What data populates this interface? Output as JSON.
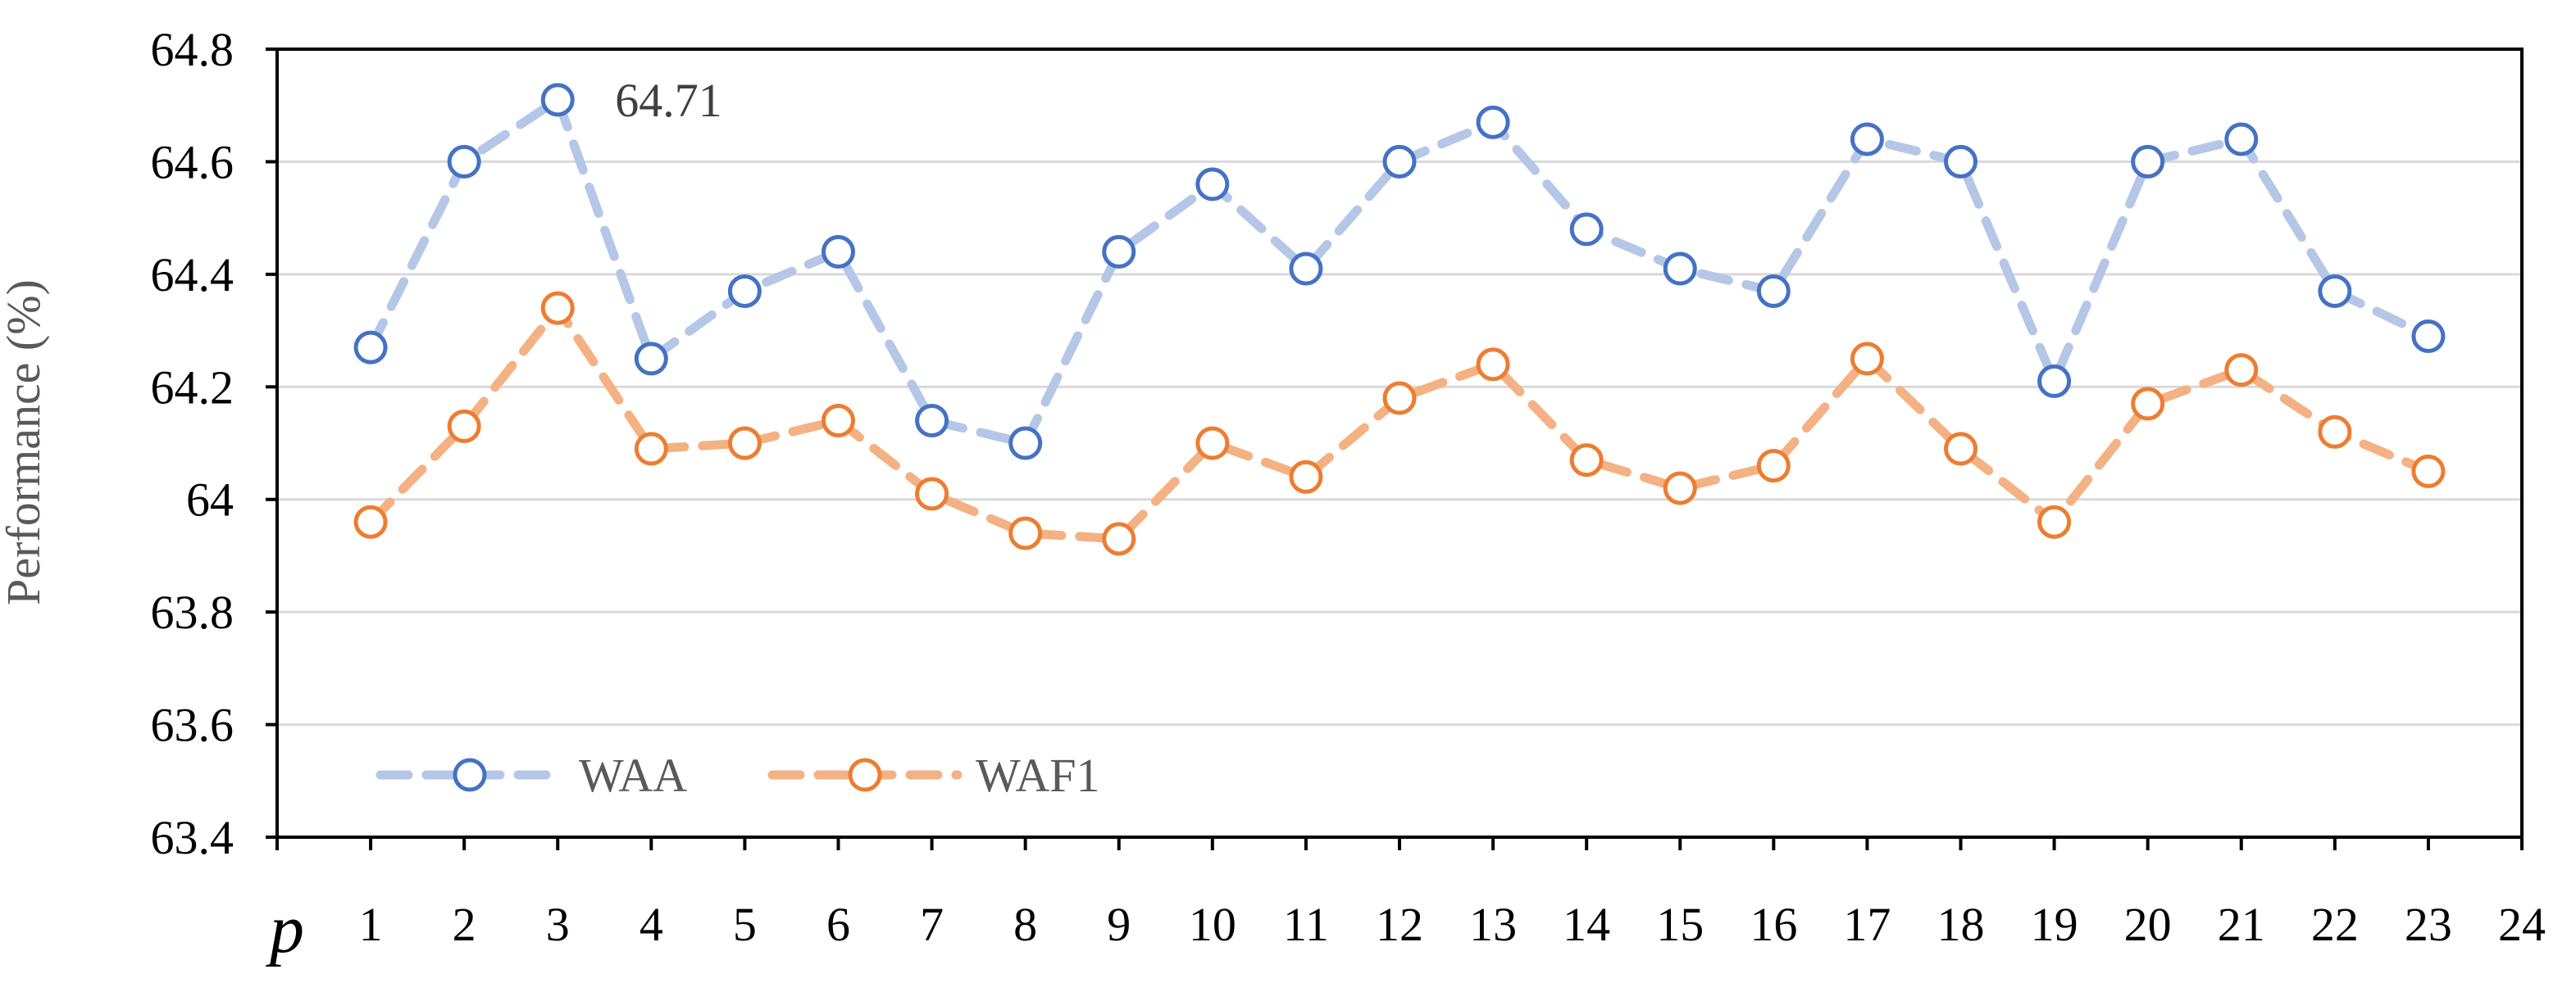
{
  "chart_data": {
    "type": "line",
    "title": "",
    "xlabel": "p",
    "ylabel": "Performance (%)",
    "x_ticks": [
      1,
      2,
      3,
      4,
      5,
      6,
      7,
      8,
      9,
      10,
      11,
      12,
      13,
      14,
      15,
      16,
      17,
      18,
      19,
      20,
      21,
      22,
      23,
      24
    ],
    "xlim": [
      0,
      24
    ],
    "ylim": [
      63.4,
      64.8
    ],
    "y_ticks": [
      "63.4",
      "63.6",
      "63.8",
      "64",
      "64.2",
      "64.4",
      "64.6",
      "64.8"
    ],
    "grid": "horizontal",
    "legend_position": "bottom-left",
    "x": [
      1,
      2,
      3,
      4,
      5,
      6,
      7,
      8,
      9,
      10,
      11,
      12,
      13,
      14,
      15,
      16,
      17,
      18,
      19,
      20,
      21,
      22,
      23
    ],
    "series": [
      {
        "name": "WAA",
        "line_color": "#B4C7E7",
        "marker_color": "#4472C4",
        "values": [
          64.27,
          64.6,
          64.71,
          64.25,
          64.37,
          64.44,
          64.14,
          64.1,
          64.44,
          64.56,
          64.41,
          64.6,
          64.67,
          64.48,
          64.41,
          64.37,
          64.64,
          64.6,
          64.21,
          64.6,
          64.64,
          64.37,
          64.29
        ]
      },
      {
        "name": "WAF1",
        "line_color": "#F4B183",
        "marker_color": "#ED7D31",
        "values": [
          63.96,
          64.13,
          64.34,
          64.09,
          64.1,
          64.14,
          64.01,
          63.94,
          63.93,
          64.1,
          64.04,
          64.18,
          64.24,
          64.07,
          64.02,
          64.06,
          64.25,
          64.09,
          63.96,
          64.17,
          64.23,
          64.12,
          64.05
        ]
      }
    ],
    "annotations": [
      {
        "text": "64.71",
        "series": "WAA",
        "x": 3
      }
    ]
  }
}
